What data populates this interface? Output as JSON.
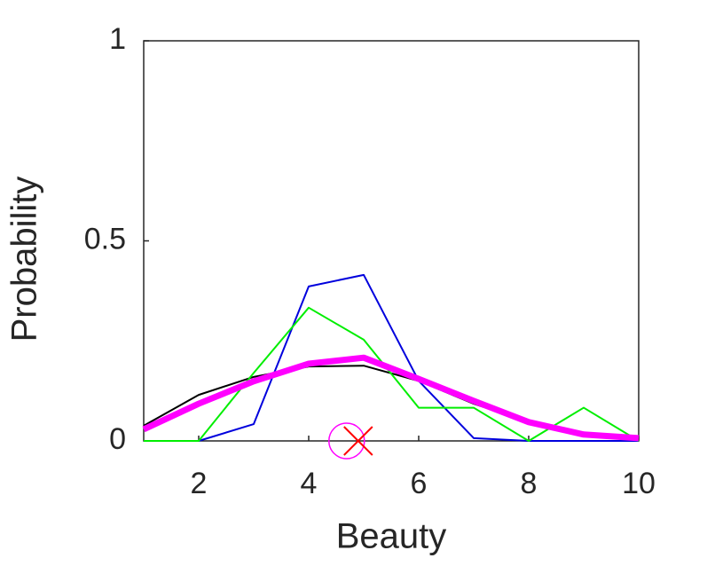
{
  "chart_data": {
    "type": "line",
    "x_label": "Beauty",
    "y_label": "Probability",
    "x": [
      1,
      2,
      3,
      4,
      5,
      6,
      7,
      8,
      9,
      10
    ],
    "series": [
      {
        "color": "#000000",
        "width": 2,
        "values": [
          0.038,
          0.115,
          0.16,
          0.186,
          0.188,
          0.15,
          0.093,
          0.047,
          0.018,
          0.007
        ]
      },
      {
        "color": "#0000dd",
        "width": 2,
        "values": [
          0,
          0,
          0.042,
          0.386,
          0.415,
          0.15,
          0.007,
          0,
          0,
          0
        ]
      },
      {
        "color": "#00ee00",
        "width": 2,
        "values": [
          0,
          0,
          0.17,
          0.333,
          0.253,
          0.083,
          0.083,
          0,
          0.083,
          0
        ]
      },
      {
        "color": "#ff00ff",
        "width": 7,
        "values": [
          0.029,
          0.093,
          0.149,
          0.193,
          0.208,
          0.155,
          0.1,
          0.047,
          0.016,
          0.007
        ]
      }
    ],
    "markers": [
      {
        "shape": "circle",
        "color": "#ff00ff",
        "x": 4.69,
        "y": 0
      },
      {
        "shape": "cross",
        "color": "#ff0000",
        "x": 4.9,
        "y": 0
      }
    ],
    "xlim": [
      1,
      10
    ],
    "xticks": [
      2,
      4,
      6,
      8,
      10
    ],
    "ylim": [
      0,
      1
    ],
    "yticks": [
      0,
      0.5,
      1
    ]
  }
}
